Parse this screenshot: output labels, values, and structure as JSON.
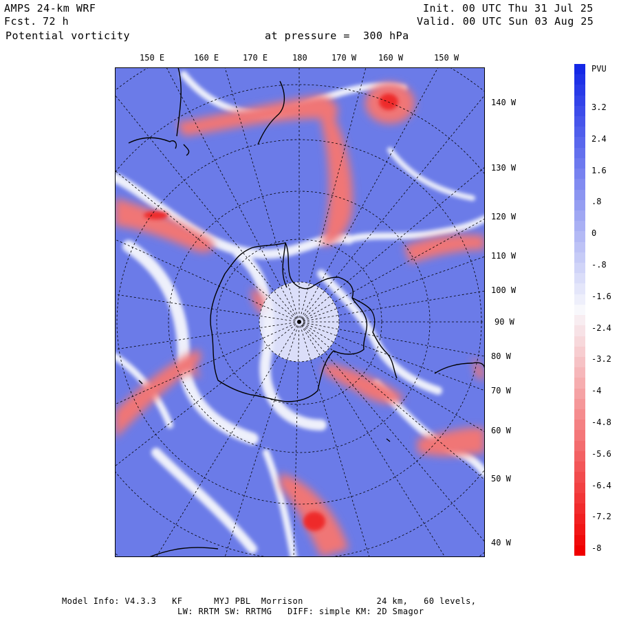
{
  "header": {
    "model": "AMPS 24-km WRF",
    "forecast_label": "Fcst.",
    "forecast_value": "72 h",
    "field": "Potential vorticity",
    "level": "at pressure =  300 hPa",
    "init": "Init. 00 UTC Thu 31 Jul 25",
    "valid": "Valid. 00 UTC Sun 03 Aug 25"
  },
  "map": {
    "top_longitudes": [
      "150 E",
      "160 E",
      "170 E",
      "180",
      "170 W",
      "160 W",
      "150 W"
    ],
    "right_longitudes": [
      "140 W",
      "130 W",
      "120 W",
      "110 W",
      "100 W",
      "90 W",
      "80 W",
      "70 W",
      "60 W",
      "50 W",
      "40 W"
    ],
    "colors": {
      "positive": "#6678e8",
      "negative": "#f07070",
      "neutral": "#f4f4fb",
      "coast": "#000000"
    }
  },
  "colorbar": {
    "unit": "PVU",
    "ticks": [
      "3.2",
      "2.4",
      "1.6",
      ".8",
      "0",
      "-.8",
      "-1.6",
      "-2.4",
      "-3.2",
      "-4",
      "-4.8",
      "-5.6",
      "-6.4",
      "-7.2",
      "-8"
    ]
  },
  "footer": {
    "line1": "Model Info: V4.3.3   KF      MYJ PBL  Morrison              24 km,   60 levels,",
    "line2": "LW: RRTM SW: RRTMG   DIFF: simple KM: 2D Smagor"
  }
}
